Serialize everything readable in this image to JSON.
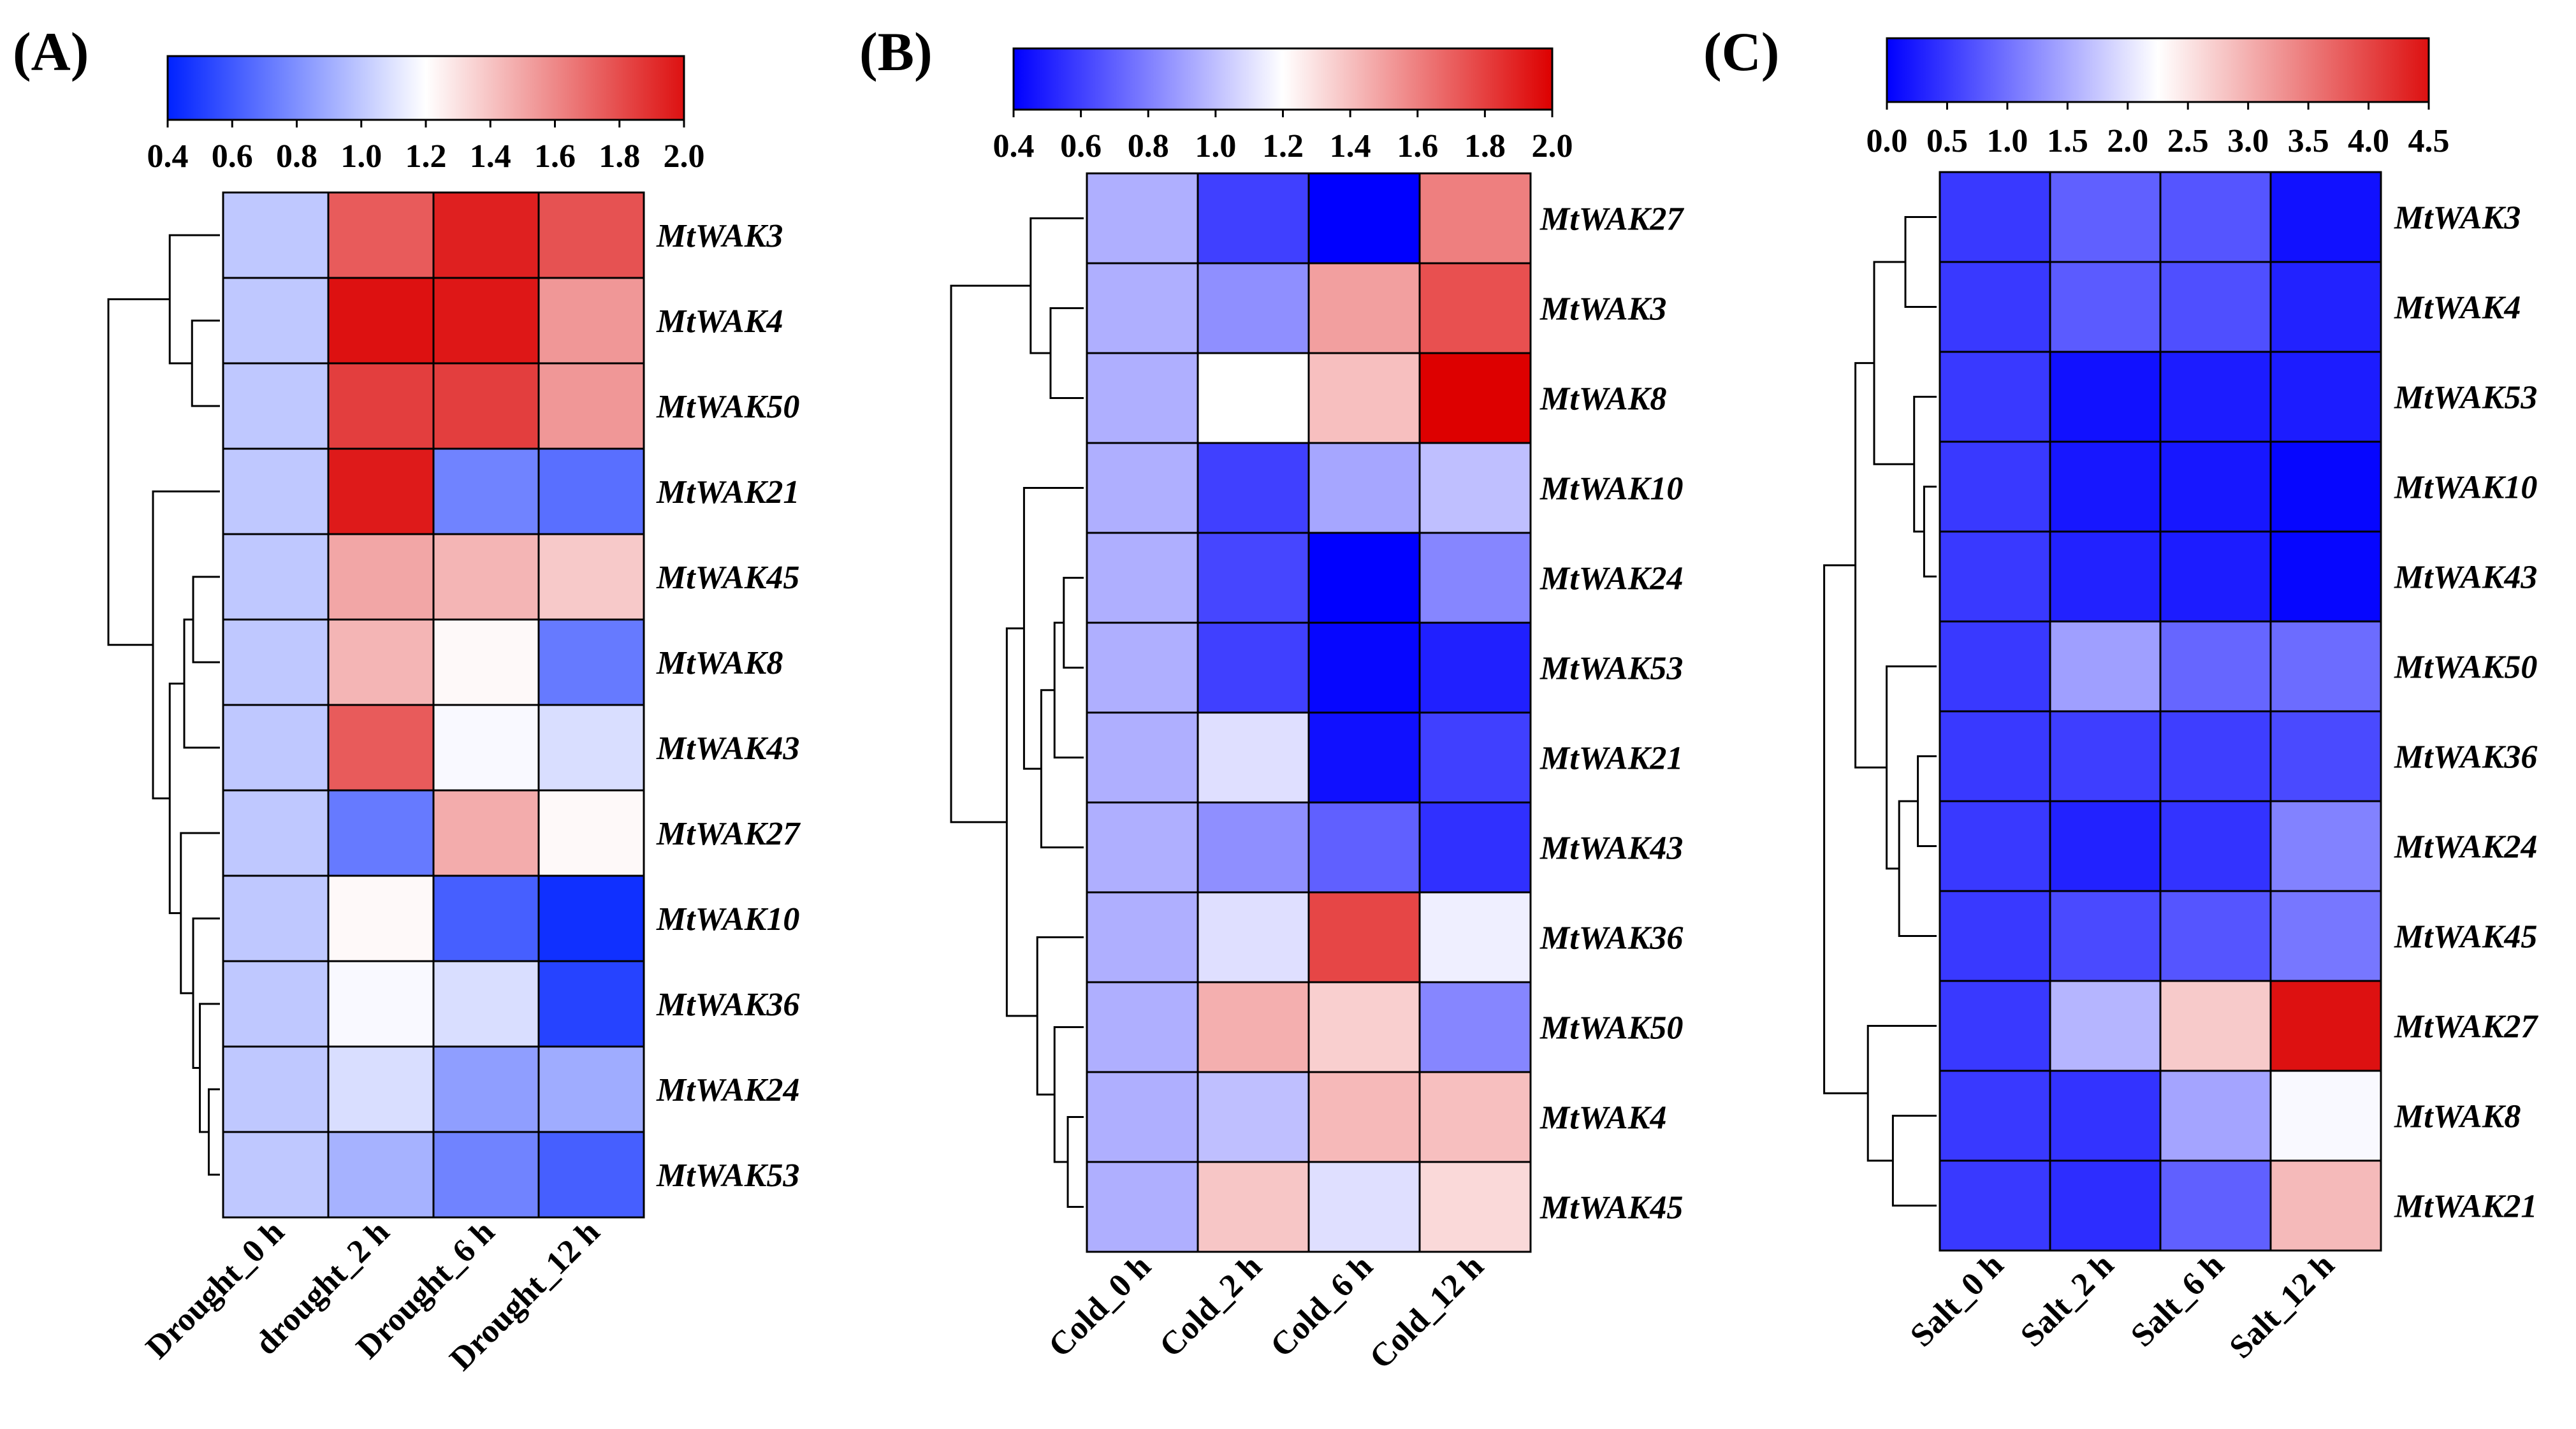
{
  "chart_data": [
    {
      "type": "heatmap",
      "panel_label": "(A)",
      "colorbar": {
        "ticks": [
          "0.4",
          "0.6",
          "0.8",
          "1.0",
          "1.2",
          "1.4",
          "1.6",
          "1.8",
          "2.0"
        ],
        "min": 0.4,
        "max": 2.0,
        "low_color": "#0022ff",
        "mid_color": "#ffffff",
        "high_color": "#dd1111"
      },
      "columns": [
        "Drought_0 h",
        "drought_2 h",
        "Drought_6 h",
        "Drought_12 h"
      ],
      "rows": [
        "MtWAK3",
        "MtWAK4",
        "MtWAK50",
        "MtWAK21",
        "MtWAK45",
        "MtWAK8",
        "MtWAK43",
        "MtWAK27",
        "MtWAK10",
        "MtWAK36",
        "MtWAK24",
        "MtWAK53"
      ],
      "values": [
        [
          1.0,
          1.75,
          1.95,
          1.78
        ],
        [
          1.0,
          2.0,
          1.98,
          1.55
        ],
        [
          1.0,
          1.85,
          1.85,
          1.55
        ],
        [
          1.0,
          1.97,
          0.75,
          0.68
        ],
        [
          1.0,
          1.5,
          1.45,
          1.38
        ],
        [
          1.0,
          1.45,
          1.22,
          0.72
        ],
        [
          1.0,
          1.75,
          1.18,
          1.08
        ],
        [
          1.0,
          0.72,
          1.48,
          1.22
        ],
        [
          1.0,
          1.22,
          0.62,
          0.45
        ],
        [
          1.0,
          1.18,
          1.08,
          0.52
        ],
        [
          1.0,
          1.08,
          0.85,
          0.9
        ],
        [
          1.0,
          0.92,
          0.75,
          0.62
        ]
      ],
      "dendrogram": {
        "leaves": [
          0,
          1,
          2,
          3,
          4,
          5,
          6,
          7,
          8,
          9,
          10,
          11
        ],
        "merges": [
          [
            1,
            2,
            0.25
          ],
          [
            0,
            12,
            0.45
          ],
          [
            4,
            5,
            0.24
          ],
          [
            14,
            6,
            0.32
          ],
          [
            10,
            11,
            0.1
          ],
          [
            9,
            16,
            0.18
          ],
          [
            8,
            17,
            0.24
          ],
          [
            7,
            18,
            0.35
          ],
          [
            15,
            19,
            0.45
          ],
          [
            3,
            20,
            0.6
          ],
          [
            13,
            21,
            1.0
          ]
        ]
      }
    },
    {
      "type": "heatmap",
      "panel_label": "(B)",
      "colorbar": {
        "ticks": [
          "0.4",
          "0.6",
          "0.8",
          "1.0",
          "1.2",
          "1.4",
          "1.6",
          "1.8",
          "2.0"
        ],
        "min": 0.4,
        "max": 2.0,
        "low_color": "#0000ff",
        "mid_color": "#ffffff",
        "high_color": "#dd0000"
      },
      "columns": [
        "Cold_0 h",
        "Cold_2 h",
        "Cold_6 h",
        "Cold_12 h"
      ],
      "rows": [
        "MtWAK27",
        "MtWAK3",
        "MtWAK8",
        "MtWAK10",
        "MtWAK24",
        "MtWAK53",
        "MtWAK21",
        "MtWAK43",
        "MtWAK36",
        "MtWAK50",
        "MtWAK4",
        "MtWAK45"
      ],
      "values": [
        [
          0.95,
          0.6,
          0.4,
          1.6
        ],
        [
          0.95,
          0.85,
          1.5,
          1.75
        ],
        [
          0.95,
          1.2,
          1.4,
          2.0
        ],
        [
          0.95,
          0.6,
          0.92,
          1.0
        ],
        [
          0.95,
          0.62,
          0.4,
          0.82
        ],
        [
          0.95,
          0.6,
          0.42,
          0.5
        ],
        [
          0.95,
          1.1,
          0.45,
          0.6
        ],
        [
          0.95,
          0.85,
          0.7,
          0.55
        ],
        [
          0.95,
          1.1,
          1.78,
          1.15
        ],
        [
          0.95,
          1.45,
          1.35,
          0.82
        ],
        [
          0.95,
          1.0,
          1.42,
          1.4
        ],
        [
          0.95,
          1.38,
          1.1,
          1.32
        ]
      ],
      "dendrogram": {
        "leaves": [
          0,
          1,
          2,
          3,
          4,
          5,
          6,
          7,
          8,
          9,
          10,
          11
        ],
        "merges": [
          [
            1,
            2,
            0.25
          ],
          [
            0,
            12,
            0.4
          ],
          [
            4,
            5,
            0.15
          ],
          [
            14,
            6,
            0.22
          ],
          [
            15,
            7,
            0.32
          ],
          [
            3,
            16,
            0.45
          ],
          [
            10,
            11,
            0.12
          ],
          [
            9,
            18,
            0.22
          ],
          [
            8,
            19,
            0.35
          ],
          [
            17,
            20,
            0.58
          ],
          [
            13,
            21,
            1.0
          ]
        ]
      }
    },
    {
      "type": "heatmap",
      "panel_label": "(C)",
      "colorbar": {
        "ticks": [
          "0.0",
          "0.5",
          "1.0",
          "1.5",
          "2.0",
          "2.5",
          "3.0",
          "3.5",
          "4.0",
          "4.5"
        ],
        "min": 0.0,
        "max": 4.5,
        "low_color": "#0000ff",
        "mid_color": "#ffffff",
        "high_color": "#dd1111"
      },
      "columns": [
        "Salt_0 h",
        "Salt_2 h",
        "Salt_6 h",
        "Salt_12 h"
      ],
      "rows": [
        "MtWAK3",
        "MtWAK4",
        "MtWAK53",
        "MtWAK10",
        "MtWAK43",
        "MtWAK50",
        "MtWAK36",
        "MtWAK24",
        "MtWAK45",
        "MtWAK27",
        "MtWAK8",
        "MtWAK21"
      ],
      "values": [
        [
          0.5,
          0.85,
          0.75,
          0.15
        ],
        [
          0.5,
          0.8,
          0.7,
          0.3
        ],
        [
          0.5,
          0.15,
          0.25,
          0.25
        ],
        [
          0.5,
          0.2,
          0.2,
          0.05
        ],
        [
          0.5,
          0.3,
          0.25,
          0.05
        ],
        [
          0.5,
          1.4,
          0.9,
          0.95
        ],
        [
          0.5,
          0.55,
          0.55,
          0.65
        ],
        [
          0.5,
          0.3,
          0.45,
          1.15
        ],
        [
          0.5,
          0.65,
          0.75,
          1.05
        ],
        [
          0.5,
          1.6,
          2.75,
          4.5
        ],
        [
          0.5,
          0.45,
          1.45,
          2.2
        ],
        [
          0.5,
          0.4,
          0.85,
          2.9
        ]
      ],
      "dendrogram": {
        "leaves": [
          0,
          1,
          2,
          3,
          4,
          5,
          6,
          7,
          8,
          9,
          10,
          11
        ],
        "merges": [
          [
            0,
            1,
            0.25
          ],
          [
            3,
            4,
            0.1
          ],
          [
            2,
            13,
            0.18
          ],
          [
            12,
            14,
            0.5
          ],
          [
            6,
            7,
            0.15
          ],
          [
            16,
            8,
            0.3
          ],
          [
            5,
            17,
            0.4
          ],
          [
            15,
            18,
            0.65
          ],
          [
            10,
            11,
            0.35
          ],
          [
            9,
            20,
            0.55
          ],
          [
            19,
            21,
            0.9
          ]
        ]
      }
    }
  ]
}
